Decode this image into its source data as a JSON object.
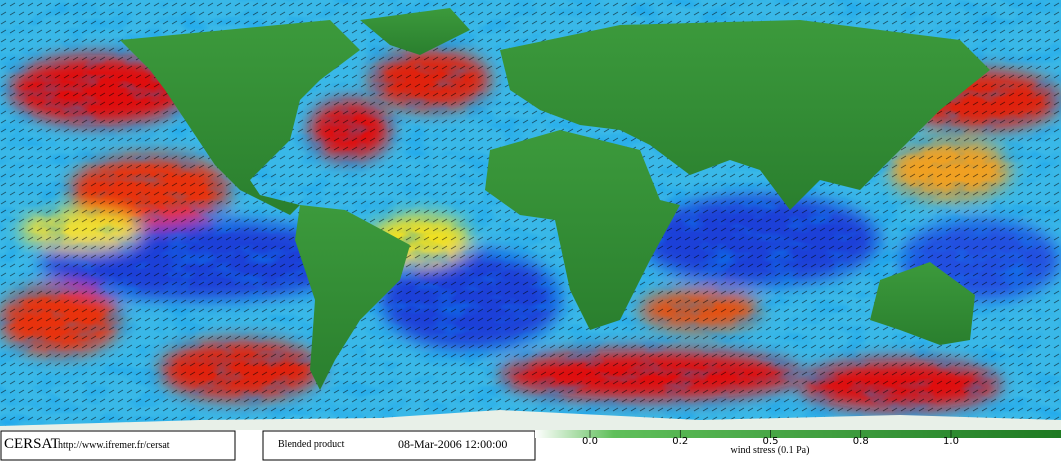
{
  "footer": {
    "logo": "CERSAT",
    "url": "http://www.ifremer.fr/cersat",
    "product": "Blended product",
    "date": "08-Mar-2006 12:00:00"
  },
  "colorbar": {
    "label": "wind stress (0.1 Pa)",
    "ticks": [
      {
        "value": 0,
        "label": "0.0"
      },
      {
        "value": 0.25,
        "label": "0.2"
      },
      {
        "value": 0.5,
        "label": "0.5"
      },
      {
        "value": 0.75,
        "label": "0.8"
      },
      {
        "value": 1,
        "label": "1.0"
      }
    ]
  }
}
